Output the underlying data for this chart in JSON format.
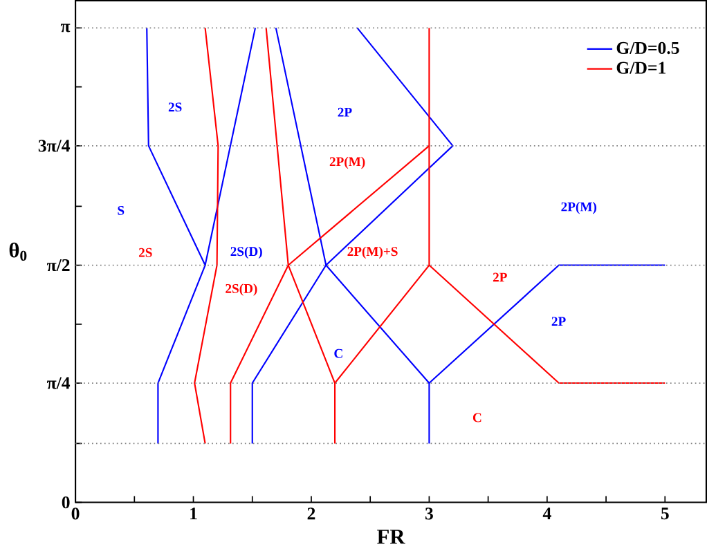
{
  "chart_data": {
    "type": "line",
    "xlabel": "FR",
    "ylabel": "θ$_{0}$",
    "xlim": [
      0,
      5.35
    ],
    "ylim": [
      0,
      3.32
    ],
    "xticks": [
      0,
      {
        "value": 0.5,
        "label": null
      },
      1,
      {
        "value": 1.5,
        "label": null
      },
      2,
      {
        "value": 2.5,
        "label": null
      },
      3,
      {
        "value": 3.5,
        "label": null
      },
      4,
      {
        "value": 4.5,
        "label": null
      },
      5
    ],
    "yticks": [
      0,
      {
        "value": 0.39,
        "label": null
      },
      {
        "value": 0.79,
        "label": "π/4"
      },
      {
        "value": 1.18,
        "label": null
      },
      {
        "value": 1.57,
        "label": "π/2"
      },
      {
        "value": 1.96,
        "label": null
      },
      {
        "value": 2.36,
        "label": "3π/4"
      },
      {
        "value": 2.75,
        "label": null
      },
      {
        "value": 3.14,
        "label": "π"
      }
    ],
    "marker": "none",
    "line_style": "solid",
    "legend": "top right",
    "series": [
      {
        "name": "G/D=0.5",
        "color": "#0000ff",
        "x": [
          0.605,
          0.62,
          1.1,
          0.7,
          0.7
        ],
        "values": [
          3.14,
          2.36,
          1.57,
          0.79,
          0.39
        ]
      },
      {
        "color": "#0000ff",
        "x": [
          1.525,
          1.1
        ],
        "values": [
          3.14,
          1.57
        ]
      },
      {
        "color": "#0000ff",
        "x": [
          1.7,
          2.125,
          1.5,
          1.5
        ],
        "values": [
          3.14,
          1.57,
          0.79,
          0.39
        ]
      },
      {
        "color": "#0000ff",
        "x": [
          2.39,
          3.2,
          2.125
        ],
        "values": [
          3.14,
          2.36,
          1.57
        ]
      },
      {
        "color": "#0000ff",
        "x": [
          2.125,
          3.0,
          4.1,
          5.0
        ],
        "values": [
          1.57,
          0.79,
          1.57,
          1.57
        ]
      },
      {
        "color": "#0000ff",
        "x": [
          3.0,
          3.0
        ],
        "values": [
          0.79,
          0.39
        ]
      },
      {
        "name": "G/D=1",
        "color": "#ff0000",
        "x": [
          1.1,
          1.21,
          1.2,
          1.01,
          1.1
        ],
        "values": [
          3.14,
          2.36,
          1.57,
          0.79,
          0.39
        ]
      },
      {
        "color": "#ff0000",
        "x": [
          1.617,
          1.805,
          1.315,
          1.315
        ],
        "values": [
          3.14,
          1.57,
          0.79,
          0.39
        ]
      },
      {
        "color": "#ff0000",
        "x": [
          1.805,
          3.0
        ],
        "values": [
          1.57,
          2.36
        ]
      },
      {
        "color": "#ff0000",
        "x": [
          1.805,
          2.2,
          2.2
        ],
        "values": [
          1.57,
          0.79,
          0.39
        ]
      },
      {
        "color": "#ff0000",
        "x": [
          2.2,
          3.0,
          4.1,
          5.0
        ],
        "values": [
          0.79,
          1.57,
          0.79,
          0.79
        ]
      },
      {
        "color": "#ff0000",
        "x": [
          3.0,
          3.0
        ],
        "values": [
          3.14,
          1.57
        ]
      }
    ],
    "ref_lines": [
      {
        "axis": "y",
        "value": 0.39,
        "color": "#808080",
        "line_style": "dotted"
      },
      {
        "axis": "y",
        "value": 0.79,
        "color": "#808080",
        "line_style": "dotted"
      },
      {
        "axis": "y",
        "value": 1.57,
        "color": "#808080",
        "line_style": "dotted"
      },
      {
        "axis": "y",
        "value": 2.36,
        "color": "#808080",
        "line_style": "dotted"
      },
      {
        "axis": "y",
        "value": 3.14,
        "color": "#808080",
        "line_style": "dotted"
      }
    ],
    "annotations": [
      "2S",
      "2P",
      "S",
      "2S(D)",
      "C",
      "2P(M)",
      "2P",
      "2S",
      "2S(D)",
      "2P(M)",
      "2P(M)+S",
      "2P",
      "C"
    ]
  }
}
